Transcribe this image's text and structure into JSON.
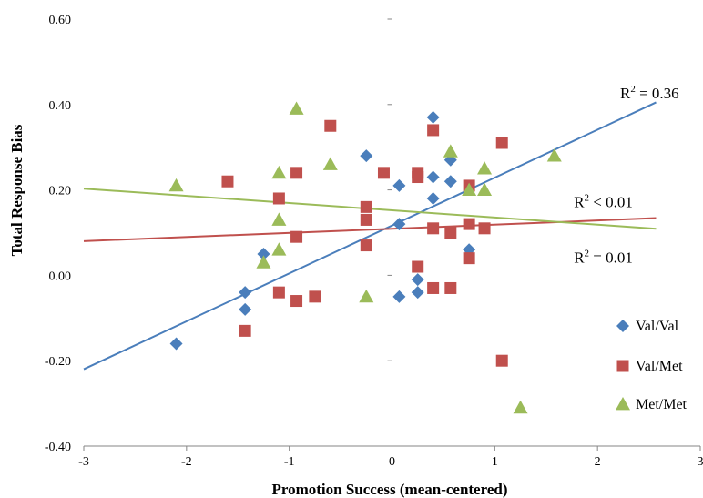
{
  "chart_data": {
    "type": "scatter",
    "xlabel": "Promotion Success (mean-centered)",
    "ylabel": "Total Response Bias",
    "xlim": [
      -3,
      3
    ],
    "ylim": [
      -0.4,
      0.6
    ],
    "x_ticks": [
      -3,
      -2,
      -1,
      0,
      1,
      2,
      3
    ],
    "y_ticks": [
      -0.4,
      -0.2,
      0.0,
      0.2,
      0.4,
      0.6
    ],
    "x_tick_labels": [
      "-3",
      "-2",
      "-1",
      "0",
      "1",
      "2",
      "3"
    ],
    "y_tick_labels": [
      "-0.40",
      "-0.20",
      "0.00",
      "0.20",
      "0.40",
      "0.60"
    ],
    "grid": false,
    "legend_position": "right",
    "series": [
      {
        "name": "Val/Val",
        "marker": "diamond",
        "color": "#4a7ebb",
        "points": [
          [
            -2.1,
            -0.16
          ],
          [
            -1.43,
            -0.04
          ],
          [
            -1.43,
            -0.08
          ],
          [
            -1.25,
            0.05
          ],
          [
            -0.25,
            0.28
          ],
          [
            0.07,
            0.21
          ],
          [
            0.07,
            0.12
          ],
          [
            0.07,
            -0.05
          ],
          [
            0.25,
            -0.01
          ],
          [
            0.25,
            -0.04
          ],
          [
            0.4,
            0.37
          ],
          [
            0.4,
            0.23
          ],
          [
            0.4,
            0.18
          ],
          [
            0.57,
            0.27
          ],
          [
            0.57,
            0.22
          ],
          [
            0.75,
            0.06
          ]
        ]
      },
      {
        "name": "Val/Met",
        "marker": "square",
        "color": "#c0504d",
        "points": [
          [
            -1.6,
            0.22
          ],
          [
            -1.43,
            -0.13
          ],
          [
            -1.1,
            0.18
          ],
          [
            -1.1,
            -0.04
          ],
          [
            -0.93,
            0.24
          ],
          [
            -0.93,
            0.09
          ],
          [
            -0.93,
            -0.06
          ],
          [
            -0.75,
            -0.05
          ],
          [
            -0.6,
            0.35
          ],
          [
            -0.25,
            0.16
          ],
          [
            -0.25,
            0.13
          ],
          [
            -0.25,
            0.07
          ],
          [
            -0.08,
            0.24
          ],
          [
            0.25,
            0.24
          ],
          [
            0.25,
            0.23
          ],
          [
            0.25,
            0.02
          ],
          [
            0.4,
            0.34
          ],
          [
            0.4,
            0.11
          ],
          [
            0.4,
            -0.03
          ],
          [
            0.57,
            0.1
          ],
          [
            0.57,
            -0.03
          ],
          [
            0.75,
            0.21
          ],
          [
            0.75,
            0.12
          ],
          [
            0.75,
            0.04
          ],
          [
            0.9,
            0.11
          ],
          [
            1.07,
            0.31
          ],
          [
            1.07,
            -0.2
          ]
        ]
      },
      {
        "name": "Met/Met",
        "marker": "triangle",
        "color": "#9bbb59",
        "points": [
          [
            -2.1,
            0.21
          ],
          [
            -1.25,
            0.03
          ],
          [
            -1.1,
            0.24
          ],
          [
            -1.1,
            0.13
          ],
          [
            -1.1,
            0.06
          ],
          [
            -0.93,
            0.39
          ],
          [
            -0.6,
            0.26
          ],
          [
            -0.25,
            -0.05
          ],
          [
            0.57,
            0.29
          ],
          [
            0.75,
            0.2
          ],
          [
            0.9,
            0.25
          ],
          [
            0.9,
            0.2
          ],
          [
            1.25,
            -0.31
          ],
          [
            1.58,
            0.28
          ]
        ]
      }
    ],
    "trendlines": [
      {
        "series": "Val/Val",
        "color": "#4a7ebb",
        "x": [
          -3,
          2.57
        ],
        "y": [
          -0.22,
          0.405
        ]
      },
      {
        "series": "Val/Met",
        "color": "#c0504d",
        "x": [
          -3,
          2.57
        ],
        "y": [
          0.08,
          0.134
        ]
      },
      {
        "series": "Met/Met",
        "color": "#9bbb59",
        "x": [
          -3,
          2.57
        ],
        "y": [
          0.203,
          0.109
        ]
      }
    ],
    "annotations": [
      {
        "base": "R",
        "sup": "2",
        "rest": " = 0.36",
        "anchor_x": 2.22,
        "anchor_y": 0.415
      },
      {
        "base": "R",
        "sup": "2",
        "rest": " < 0.01",
        "anchor_x": 1.77,
        "anchor_y": 0.16
      },
      {
        "base": "R",
        "sup": "2",
        "rest": " = 0.01",
        "anchor_x": 1.77,
        "anchor_y": 0.03
      }
    ]
  }
}
